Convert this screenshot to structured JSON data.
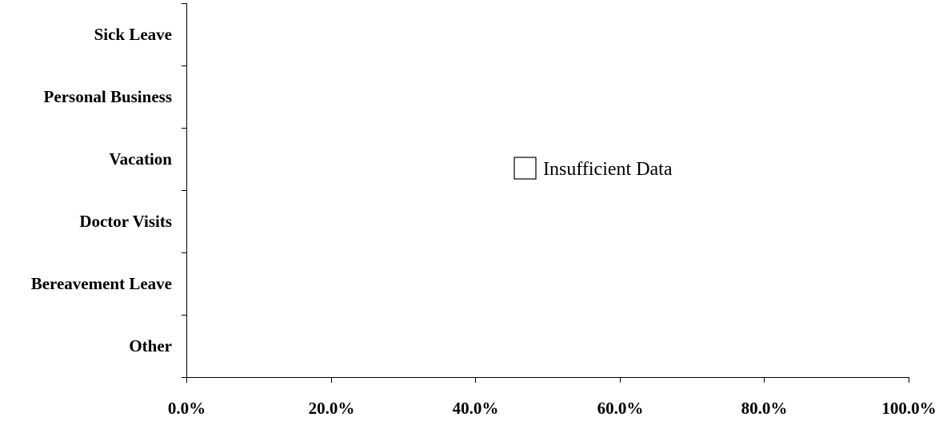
{
  "chart_data": {
    "type": "bar",
    "orientation": "horizontal",
    "categories": [
      "Sick Leave",
      "Personal Business",
      "Vacation",
      "Doctor Visits",
      "Bereavement Leave",
      "Other"
    ],
    "series": [
      {
        "name": "Insufficient Data",
        "values": [
          null,
          null,
          null,
          null,
          null,
          null
        ],
        "color": "#ffffff"
      }
    ],
    "x_ticks": [
      "0.0%",
      "20.0%",
      "40.0%",
      "60.0%",
      "80.0%",
      "100.0%"
    ],
    "xlim": [
      0,
      100
    ],
    "title": "",
    "xlabel": "",
    "ylabel": "",
    "grid": false,
    "legend": {
      "placement": "center",
      "entries": [
        "Insufficient Data"
      ]
    }
  }
}
